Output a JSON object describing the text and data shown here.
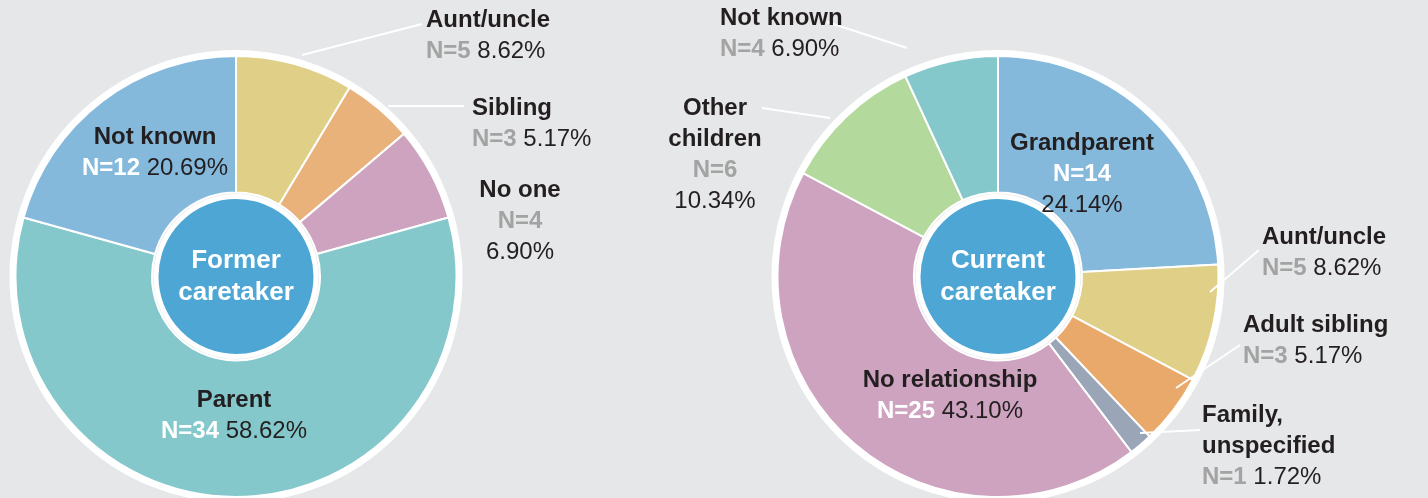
{
  "chart_data": [
    {
      "type": "donut",
      "title": "Former caretaker",
      "categories": [
        "Aunt/uncle",
        "Sibling",
        "No one",
        "Parent",
        "Not known"
      ],
      "values": [
        5,
        3,
        4,
        34,
        12
      ],
      "colors": [
        "#e0cf86",
        "#e8b27a",
        "#cda3bf",
        "#84c8cb",
        "#85b9dc"
      ],
      "value_labels": [
        "N=5 8.62%",
        "N=3 5.17%",
        "N=4 6.90%",
        "N=34 58.62%",
        "N=12 20.69%"
      ]
    },
    {
      "type": "donut",
      "title": "Current caretaker",
      "categories": [
        "Grandparent",
        "Aunt/uncle",
        "Adult sibling",
        "Family, unspecified",
        "No relationship",
        "Other children",
        "Not known"
      ],
      "values": [
        14,
        5,
        3,
        1,
        25,
        6,
        4
      ],
      "colors": [
        "#85b9dc",
        "#e0cf86",
        "#e8a96a",
        "#9aa6b8",
        "#cda3bf",
        "#b4d99d",
        "#85c8cc"
      ],
      "value_labels": [
        "N=14 24.14%",
        "N=5 8.62%",
        "N=3 5.17%",
        "N=1 1.72%",
        "N=25 43.10%",
        "N=6 10.34%",
        "N=4 6.90%"
      ]
    }
  ]
}
